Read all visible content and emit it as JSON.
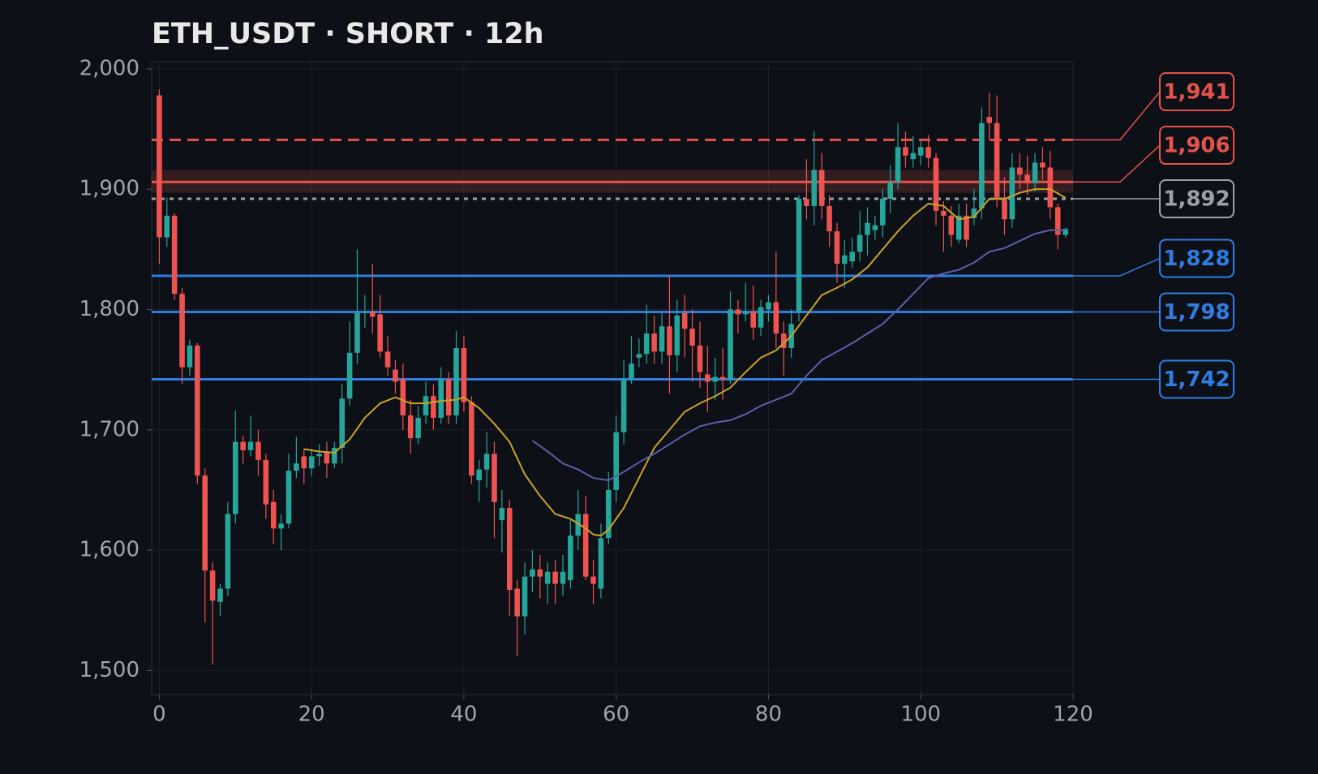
{
  "chart_data": {
    "type": "candlestick",
    "title": "ETH_USDT · SHORT · 12h",
    "x": [
      0,
      1,
      2,
      3,
      4,
      5,
      6,
      7,
      8,
      9,
      10,
      11,
      12,
      13,
      14,
      15,
      16,
      17,
      18,
      19,
      20,
      21,
      22,
      23,
      24,
      25,
      26,
      27,
      28,
      29,
      30,
      31,
      32,
      33,
      34,
      35,
      36,
      37,
      38,
      39,
      40,
      41,
      42,
      43,
      44,
      45,
      46,
      47,
      48,
      49,
      50,
      51,
      52,
      53,
      54,
      55,
      56,
      57,
      58,
      59,
      60,
      61,
      62,
      63,
      64,
      65,
      66,
      67,
      68,
      69,
      70,
      71,
      72,
      73,
      74,
      75,
      76,
      77,
      78,
      79,
      80,
      81,
      82,
      83,
      84,
      85,
      86,
      87,
      88,
      89,
      90,
      91,
      92,
      93,
      94,
      95,
      96,
      97,
      98,
      99,
      100,
      101,
      102,
      103,
      104,
      105,
      106,
      107,
      108,
      109,
      110,
      111,
      112,
      113,
      114,
      115,
      116,
      117,
      118,
      119
    ],
    "open": [
      1978,
      1860,
      1878,
      1813,
      1752,
      1770,
      1662,
      1583,
      1557,
      1568,
      1630,
      1690,
      1683,
      1690,
      1675,
      1640,
      1618,
      1622,
      1666,
      1678,
      1668,
      1678,
      1682,
      1672,
      1685,
      1726,
      1764,
      1797,
      1798,
      1796,
      1765,
      1750,
      1742,
      1712,
      1693,
      1712,
      1728,
      1710,
      1742,
      1712,
      1768,
      1723,
      1658,
      1667,
      1680,
      1625,
      1635,
      1568,
      1545,
      1578,
      1584,
      1572,
      1582,
      1572,
      1575,
      1612,
      1630,
      1578,
      1568,
      1610,
      1650,
      1698,
      1742,
      1760,
      1763,
      1780,
      1765,
      1786,
      1762,
      1797,
      1784,
      1770,
      1746,
      1740,
      1744,
      1742,
      1800,
      1796,
      1798,
      1785,
      1800,
      1806,
      1780,
      1768,
      1798,
      1892,
      1886,
      1916,
      1886,
      1865,
      1838,
      1840,
      1848,
      1862,
      1866,
      1870,
      1892,
      1906,
      1935,
      1925,
      1928,
      1935,
      1926,
      1882,
      1878,
      1858,
      1878,
      1876,
      1884,
      1960,
      1955,
      1893,
      1875,
      1918,
      1912,
      1905,
      1922,
      1918,
      1885,
      1862
    ],
    "high": [
      1983,
      1893,
      1880,
      1818,
      1775,
      1772,
      1668,
      1590,
      1572,
      1640,
      1716,
      1695,
      1712,
      1700,
      1680,
      1650,
      1630,
      1680,
      1694,
      1684,
      1684,
      1688,
      1690,
      1690,
      1738,
      1790,
      1850,
      1812,
      1838,
      1812,
      1778,
      1758,
      1755,
      1725,
      1720,
      1740,
      1738,
      1752,
      1748,
      1782,
      1778,
      1728,
      1675,
      1698,
      1690,
      1650,
      1642,
      1575,
      1590,
      1600,
      1596,
      1590,
      1592,
      1596,
      1625,
      1650,
      1645,
      1592,
      1622,
      1665,
      1712,
      1758,
      1778,
      1776,
      1804,
      1795,
      1798,
      1828,
      1808,
      1812,
      1800,
      1790,
      1770,
      1760,
      1768,
      1815,
      1808,
      1822,
      1820,
      1808,
      1812,
      1848,
      1790,
      1800,
      1895,
      1925,
      1948,
      1930,
      1895,
      1872,
      1858,
      1860,
      1882,
      1885,
      1878,
      1900,
      1920,
      1955,
      1948,
      1944,
      1940,
      1945,
      1930,
      1890,
      1886,
      1888,
      1888,
      1900,
      1968,
      1980,
      1978,
      1910,
      1930,
      1930,
      1928,
      1930,
      1935,
      1932,
      1888,
      1868
    ],
    "low": [
      1838,
      1852,
      1808,
      1738,
      1745,
      1655,
      1540,
      1505,
      1545,
      1562,
      1622,
      1672,
      1678,
      1662,
      1626,
      1605,
      1600,
      1618,
      1660,
      1655,
      1662,
      1670,
      1660,
      1668,
      1672,
      1720,
      1755,
      1785,
      1780,
      1760,
      1745,
      1730,
      1700,
      1680,
      1688,
      1705,
      1700,
      1705,
      1705,
      1705,
      1715,
      1655,
      1640,
      1652,
      1610,
      1598,
      1545,
      1512,
      1530,
      1565,
      1560,
      1555,
      1555,
      1562,
      1568,
      1600,
      1575,
      1555,
      1560,
      1605,
      1640,
      1688,
      1738,
      1752,
      1755,
      1755,
      1755,
      1730,
      1748,
      1760,
      1740,
      1735,
      1715,
      1725,
      1725,
      1738,
      1780,
      1790,
      1775,
      1778,
      1790,
      1768,
      1745,
      1760,
      1790,
      1875,
      1870,
      1875,
      1852,
      1822,
      1818,
      1835,
      1840,
      1845,
      1858,
      1860,
      1880,
      1900,
      1918,
      1918,
      1920,
      1918,
      1870,
      1848,
      1852,
      1855,
      1852,
      1870,
      1875,
      1940,
      1885,
      1862,
      1868,
      1900,
      1895,
      1898,
      1908,
      1875,
      1850,
      1860
    ],
    "close": [
      1860,
      1878,
      1813,
      1752,
      1770,
      1662,
      1583,
      1558,
      1568,
      1630,
      1690,
      1683,
      1690,
      1675,
      1638,
      1618,
      1622,
      1666,
      1672,
      1668,
      1678,
      1680,
      1672,
      1685,
      1726,
      1764,
      1797,
      1798,
      1794,
      1765,
      1752,
      1740,
      1712,
      1693,
      1710,
      1728,
      1710,
      1742,
      1712,
      1768,
      1723,
      1662,
      1667,
      1680,
      1640,
      1635,
      1567,
      1545,
      1578,
      1584,
      1578,
      1582,
      1572,
      1582,
      1612,
      1630,
      1578,
      1572,
      1610,
      1650,
      1698,
      1742,
      1755,
      1763,
      1780,
      1765,
      1786,
      1762,
      1795,
      1784,
      1770,
      1748,
      1740,
      1744,
      1742,
      1800,
      1796,
      1798,
      1785,
      1802,
      1806,
      1780,
      1768,
      1788,
      1892,
      1886,
      1916,
      1886,
      1865,
      1838,
      1845,
      1848,
      1862,
      1872,
      1870,
      1892,
      1906,
      1935,
      1928,
      1930,
      1935,
      1926,
      1882,
      1878,
      1862,
      1878,
      1858,
      1884,
      1955,
      1955,
      1893,
      1875,
      1918,
      1912,
      1905,
      1922,
      1918,
      1885,
      1862,
      1867
    ],
    "up_color": "#26a69a",
    "down_color": "#ef5350",
    "lines": [
      {
        "color": "#c9a227",
        "x": [
          19,
          21,
          23,
          25,
          27,
          29,
          31,
          33,
          35,
          37,
          39,
          40,
          42,
          44,
          46,
          48,
          50,
          52,
          54,
          56,
          57,
          58,
          59,
          61,
          63,
          65,
          67,
          69,
          71,
          73,
          75,
          77,
          79,
          81,
          83,
          85,
          87,
          89,
          91,
          93,
          95,
          97,
          99,
          101,
          103,
          105,
          107,
          109,
          111,
          113,
          115,
          117,
          119
        ],
        "values": [
          1684,
          1682,
          1681,
          1692,
          1710,
          1722,
          1727,
          1722,
          1722,
          1724,
          1725,
          1727,
          1718,
          1705,
          1690,
          1663,
          1645,
          1630,
          1626,
          1618,
          1613,
          1612,
          1617,
          1635,
          1660,
          1685,
          1700,
          1715,
          1722,
          1728,
          1735,
          1748,
          1760,
          1766,
          1778,
          1795,
          1812,
          1818,
          1825,
          1835,
          1850,
          1865,
          1878,
          1888,
          1886,
          1875,
          1877,
          1892,
          1892,
          1897,
          1900,
          1900,
          1893
        ]
      },
      {
        "color": "#5b5fa8",
        "x": [
          49,
          51,
          53,
          55,
          57,
          59,
          61,
          63,
          65,
          67,
          69,
          71,
          73,
          75,
          77,
          79,
          81,
          83,
          85,
          87,
          89,
          91,
          93,
          95,
          97,
          99,
          101,
          103,
          105,
          107,
          109,
          111,
          113,
          115,
          117,
          119
        ],
        "values": [
          1691,
          1682,
          1672,
          1667,
          1660,
          1658,
          1665,
          1673,
          1680,
          1688,
          1696,
          1703,
          1706,
          1708,
          1713,
          1720,
          1725,
          1730,
          1745,
          1758,
          1765,
          1772,
          1780,
          1788,
          1800,
          1813,
          1826,
          1830,
          1833,
          1839,
          1848,
          1851,
          1857,
          1863,
          1866,
          1866
        ]
      }
    ],
    "levels": [
      {
        "value": 1941,
        "label": "1,941",
        "color": "#e5534b",
        "style": "dashed"
      },
      {
        "value": 1906,
        "label": "1,906",
        "color": "#e5534b",
        "style": "solid"
      },
      {
        "value": 1892,
        "label": "1,892",
        "color": "#9aa0a6",
        "style": "dotted"
      },
      {
        "value": 1828,
        "label": "1,828",
        "color": "#2f7de1",
        "style": "solid"
      },
      {
        "value": 1798,
        "label": "1,798",
        "color": "#2f7de1",
        "style": "solid"
      },
      {
        "value": 1742,
        "label": "1,742",
        "color": "#2f7de1",
        "style": "solid"
      }
    ],
    "zone": [
      1897,
      1916
    ],
    "zone_color": "#e5534b",
    "xlim": [
      -1,
      120
    ],
    "ylim": [
      1480,
      2006
    ],
    "xticks": [
      0,
      20,
      40,
      60,
      80,
      100,
      120
    ],
    "yticks": [
      {
        "value": 1500,
        "label": "1,500"
      },
      {
        "value": 1600,
        "label": "1,600"
      },
      {
        "value": 1700,
        "label": "1,700"
      },
      {
        "value": 1800,
        "label": "1,800"
      },
      {
        "value": 1900,
        "label": "1,900"
      },
      {
        "value": 2000,
        "label": "2,000"
      }
    ],
    "grid": true
  }
}
